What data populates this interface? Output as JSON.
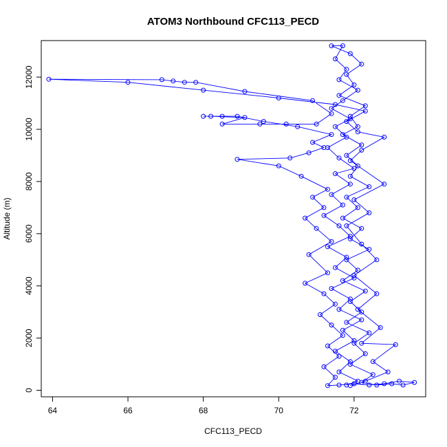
{
  "chart_data": {
    "type": "line",
    "title": "ATOM3 Northbound CFC113_PECD",
    "xlabel": "CFC113_PECD",
    "ylabel": "Altitude (m)",
    "xlim": [
      63.7,
      73.9
    ],
    "ylim": [
      -250,
      13400
    ],
    "xticks": [
      64,
      66,
      68,
      70,
      72
    ],
    "yticks": [
      0,
      2000,
      4000,
      6000,
      8000,
      10000,
      12000
    ],
    "grid": false,
    "legend": "none",
    "colors": {
      "series": "#0000ff",
      "axis": "#000000"
    },
    "series": [
      {
        "points": [
          {
            "x": 71.8,
            "y": 200
          },
          {
            "x": 72.1,
            "y": 350
          },
          {
            "x": 71.6,
            "y": 700
          },
          {
            "x": 71.9,
            "y": 1100
          },
          {
            "x": 71.5,
            "y": 1500
          },
          {
            "x": 72.0,
            "y": 1900
          },
          {
            "x": 71.7,
            "y": 2300
          },
          {
            "x": 72.2,
            "y": 2700
          },
          {
            "x": 71.6,
            "y": 3100
          },
          {
            "x": 71.9,
            "y": 3500
          },
          {
            "x": 71.4,
            "y": 3900
          },
          {
            "x": 72.0,
            "y": 4300
          },
          {
            "x": 71.5,
            "y": 4700
          },
          {
            "x": 71.8,
            "y": 5100
          },
          {
            "x": 71.3,
            "y": 5500
          },
          {
            "x": 71.9,
            "y": 5900
          },
          {
            "x": 71.6,
            "y": 6300
          },
          {
            "x": 71.2,
            "y": 6700
          },
          {
            "x": 71.7,
            "y": 7100
          },
          {
            "x": 71.4,
            "y": 7500
          },
          {
            "x": 71.9,
            "y": 7900
          },
          {
            "x": 71.5,
            "y": 8300
          },
          {
            "x": 72.0,
            "y": 8500
          },
          {
            "x": 71.6,
            "y": 8900
          },
          {
            "x": 71.3,
            "y": 9300
          },
          {
            "x": 71.8,
            "y": 9700
          },
          {
            "x": 71.5,
            "y": 10100
          },
          {
            "x": 71.9,
            "y": 10400
          },
          {
            "x": 71.4,
            "y": 10800
          },
          {
            "x": 71.7,
            "y": 11100
          },
          {
            "x": 72.1,
            "y": 11500
          },
          {
            "x": 71.6,
            "y": 11900
          },
          {
            "x": 71.8,
            "y": 12300
          },
          {
            "x": 71.5,
            "y": 12700
          },
          {
            "x": 71.7,
            "y": 13200
          },
          {
            "x": 71.4,
            "y": 13200
          },
          {
            "x": 71.9,
            "y": 12900
          },
          {
            "x": 72.2,
            "y": 12500
          },
          {
            "x": 71.8,
            "y": 12100
          },
          {
            "x": 72.0,
            "y": 11700
          },
          {
            "x": 71.6,
            "y": 11300
          },
          {
            "x": 72.3,
            "y": 10900
          },
          {
            "x": 71.9,
            "y": 10500
          },
          {
            "x": 72.1,
            "y": 10100
          },
          {
            "x": 71.7,
            "y": 9800
          },
          {
            "x": 72.2,
            "y": 9400
          },
          {
            "x": 71.8,
            "y": 9000
          },
          {
            "x": 72.1,
            "y": 8600
          },
          {
            "x": 71.9,
            "y": 8200
          },
          {
            "x": 72.4,
            "y": 7800
          },
          {
            "x": 71.8,
            "y": 7400
          },
          {
            "x": 72.1,
            "y": 7000
          },
          {
            "x": 71.7,
            "y": 6600
          },
          {
            "x": 72.2,
            "y": 6200
          },
          {
            "x": 71.9,
            "y": 5800
          },
          {
            "x": 72.4,
            "y": 5400
          },
          {
            "x": 71.8,
            "y": 5000
          },
          {
            "x": 72.1,
            "y": 4600
          },
          {
            "x": 71.7,
            "y": 4200
          },
          {
            "x": 72.3,
            "y": 3800
          },
          {
            "x": 71.9,
            "y": 3400
          },
          {
            "x": 72.2,
            "y": 3000
          },
          {
            "x": 71.8,
            "y": 2600
          },
          {
            "x": 72.4,
            "y": 2200
          },
          {
            "x": 72.0,
            "y": 1800
          },
          {
            "x": 72.3,
            "y": 1400
          },
          {
            "x": 71.9,
            "y": 1000
          },
          {
            "x": 72.5,
            "y": 600
          },
          {
            "x": 72.2,
            "y": 300
          },
          {
            "x": 72.6,
            "y": 200
          },
          {
            "x": 73.0,
            "y": 250
          },
          {
            "x": 73.3,
            "y": 200
          },
          {
            "x": 73.6,
            "y": 300
          },
          {
            "x": 73.2,
            "y": 350
          },
          {
            "x": 72.8,
            "y": 250
          },
          {
            "x": 72.4,
            "y": 200
          },
          {
            "x": 72.0,
            "y": 250
          },
          {
            "x": 71.6,
            "y": 200
          },
          {
            "x": 71.3,
            "y": 180
          },
          {
            "x": 71.5,
            "y": 500
          },
          {
            "x": 71.2,
            "y": 900
          },
          {
            "x": 71.6,
            "y": 1300
          },
          {
            "x": 71.3,
            "y": 1700
          },
          {
            "x": 71.7,
            "y": 2100
          },
          {
            "x": 71.4,
            "y": 2500
          },
          {
            "x": 71.1,
            "y": 2900
          },
          {
            "x": 71.5,
            "y": 3300
          },
          {
            "x": 71.2,
            "y": 3700
          },
          {
            "x": 70.7,
            "y": 4100
          },
          {
            "x": 71.3,
            "y": 4500
          },
          {
            "x": 70.8,
            "y": 5200
          },
          {
            "x": 71.4,
            "y": 5700
          },
          {
            "x": 71.0,
            "y": 6200
          },
          {
            "x": 70.7,
            "y": 6600
          },
          {
            "x": 71.2,
            "y": 7000
          },
          {
            "x": 70.9,
            "y": 7400
          },
          {
            "x": 71.3,
            "y": 7700
          },
          {
            "x": 70.6,
            "y": 8200
          },
          {
            "x": 70.0,
            "y": 8600
          },
          {
            "x": 68.9,
            "y": 8850
          },
          {
            "x": 70.3,
            "y": 8900
          },
          {
            "x": 70.8,
            "y": 9100
          },
          {
            "x": 71.2,
            "y": 9300
          },
          {
            "x": 70.9,
            "y": 9500
          },
          {
            "x": 71.4,
            "y": 9800
          },
          {
            "x": 70.5,
            "y": 10100
          },
          {
            "x": 69.6,
            "y": 10300
          },
          {
            "x": 68.9,
            "y": 10500
          },
          {
            "x": 68.5,
            "y": 10500
          },
          {
            "x": 68.0,
            "y": 10500
          },
          {
            "x": 68.2,
            "y": 10500
          },
          {
            "x": 69.1,
            "y": 10450
          },
          {
            "x": 68.5,
            "y": 10200
          },
          {
            "x": 69.5,
            "y": 10200
          },
          {
            "x": 70.2,
            "y": 10200
          },
          {
            "x": 71.0,
            "y": 10200
          },
          {
            "x": 71.4,
            "y": 10600
          },
          {
            "x": 70.9,
            "y": 11100
          },
          {
            "x": 69.1,
            "y": 11450
          },
          {
            "x": 67.8,
            "y": 11800
          },
          {
            "x": 67.5,
            "y": 11800
          },
          {
            "x": 67.2,
            "y": 11850
          },
          {
            "x": 66.9,
            "y": 11900
          },
          {
            "x": 63.9,
            "y": 11920
          },
          {
            "x": 66.0,
            "y": 11800
          },
          {
            "x": 68.0,
            "y": 11500
          },
          {
            "x": 70.0,
            "y": 11200
          },
          {
            "x": 71.5,
            "y": 10950
          },
          {
            "x": 72.3,
            "y": 10700
          },
          {
            "x": 71.8,
            "y": 10300
          },
          {
            "x": 72.1,
            "y": 9900
          },
          {
            "x": 72.8,
            "y": 9700
          },
          {
            "x": 72.2,
            "y": 9200
          },
          {
            "x": 71.9,
            "y": 8800
          },
          {
            "x": 72.8,
            "y": 7900
          },
          {
            "x": 72.0,
            "y": 7300
          },
          {
            "x": 72.4,
            "y": 6800
          },
          {
            "x": 71.8,
            "y": 6300
          },
          {
            "x": 72.2,
            "y": 5600
          },
          {
            "x": 72.6,
            "y": 5000
          },
          {
            "x": 72.0,
            "y": 4400
          },
          {
            "x": 72.6,
            "y": 3700
          },
          {
            "x": 72.1,
            "y": 3100
          },
          {
            "x": 72.7,
            "y": 2400
          },
          {
            "x": 72.2,
            "y": 1800
          },
          {
            "x": 73.1,
            "y": 1750
          },
          {
            "x": 72.5,
            "y": 1100
          },
          {
            "x": 72.9,
            "y": 700
          },
          {
            "x": 72.3,
            "y": 350
          },
          {
            "x": 71.9,
            "y": 180
          }
        ]
      }
    ]
  }
}
